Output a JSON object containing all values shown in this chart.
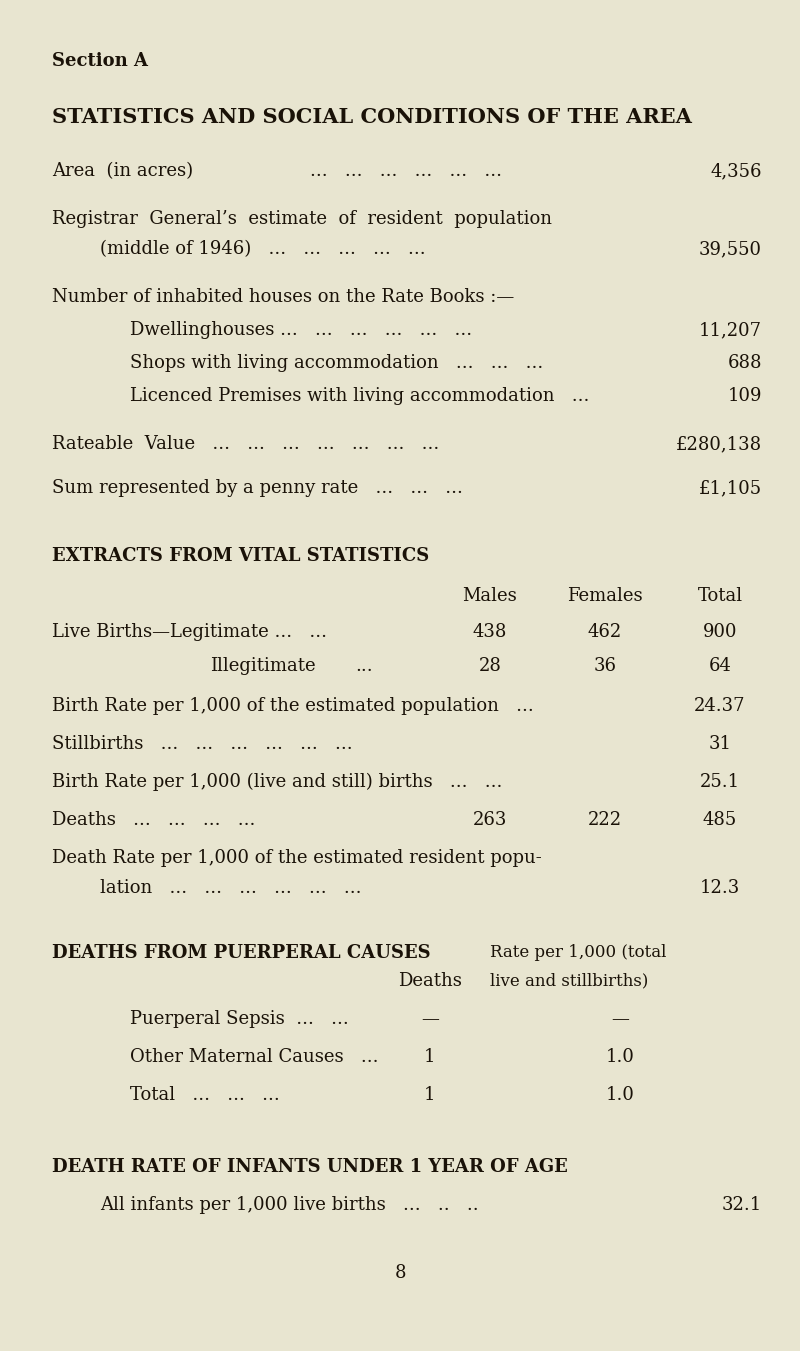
{
  "bg_color": "#e8e5d0",
  "text_color": "#1a1208",
  "section_label": "Section A",
  "main_title": "STATISTICS AND SOCIAL CONDITIONS OF THE AREA",
  "section2_title": "EXTRACTS FROM VITAL STATISTICS",
  "section3_title": "DEATHS FROM PUERPERAL CAUSES",
  "section4_title": "DEATH RATE OF INFANTS UNDER 1 YEAR OF AGE",
  "page_num": "8",
  "figw": 8.0,
  "figh": 13.51,
  "dpi": 100
}
